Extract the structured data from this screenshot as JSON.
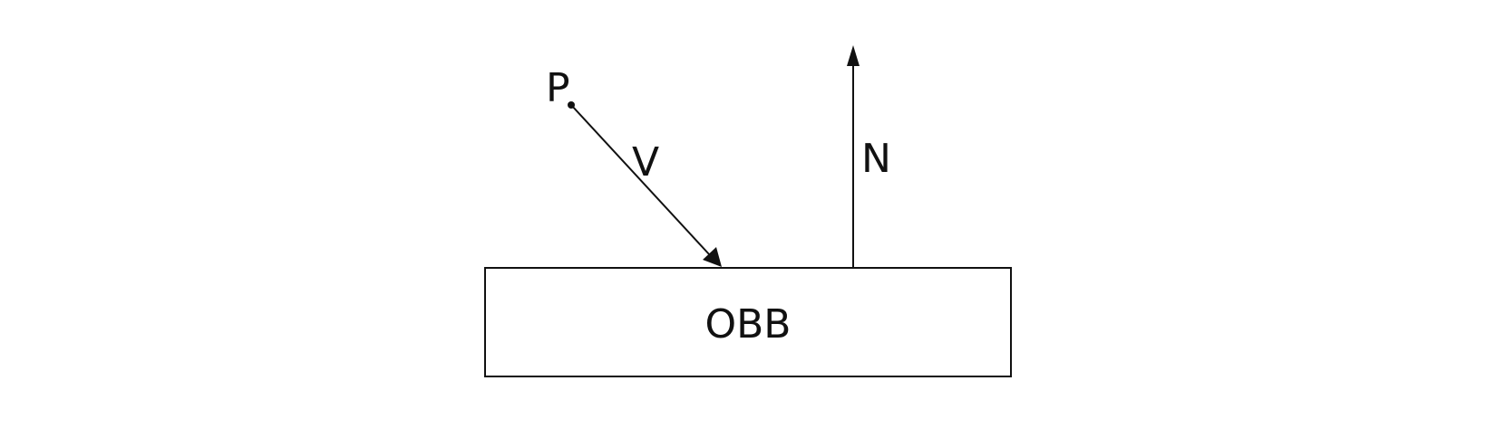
{
  "diagram": {
    "point_label": "P",
    "vector_v_label": "V",
    "normal_label": "N",
    "box_label": "OBB"
  },
  "colors": {
    "stroke": "#111111",
    "background": "#ffffff"
  }
}
